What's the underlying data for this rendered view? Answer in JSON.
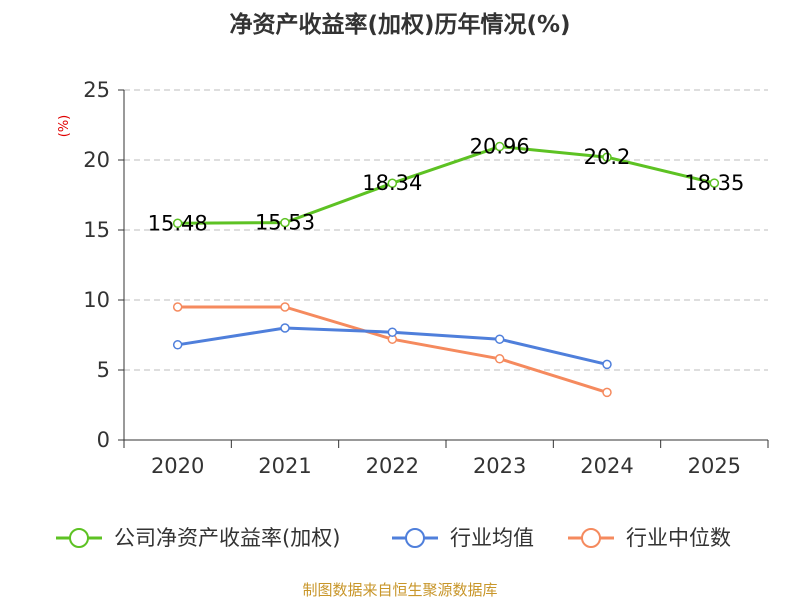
{
  "chart_data": {
    "type": "line",
    "title": "净资产收益率(加权)历年情况(%)",
    "ylabel": "(%)",
    "xlabel": "",
    "categories": [
      "2020",
      "2021",
      "2022",
      "2023",
      "2024",
      "2025"
    ],
    "ylim": [
      0,
      25
    ],
    "yticks": [
      0,
      5,
      10,
      15,
      20,
      25
    ],
    "grid": true,
    "legend_position": "bottom",
    "series": [
      {
        "name": "公司净资产收益率(加权)",
        "color": "#5dc223",
        "values": [
          15.48,
          15.53,
          18.34,
          20.96,
          20.2,
          18.35
        ],
        "labels": [
          "15.48",
          "15.53",
          "18.34",
          "20.96",
          "20.2",
          "18.35"
        ]
      },
      {
        "name": "行业均值",
        "color": "#4f7fdb",
        "values": [
          6.8,
          8.0,
          7.7,
          7.2,
          5.4,
          null
        ]
      },
      {
        "name": "行业中位数",
        "color": "#f58a5e",
        "values": [
          9.5,
          9.5,
          7.2,
          5.8,
          3.4,
          null
        ]
      }
    ]
  },
  "footer": {
    "source": "制图数据来自恒生聚源数据库",
    "color": "#c8962a"
  }
}
